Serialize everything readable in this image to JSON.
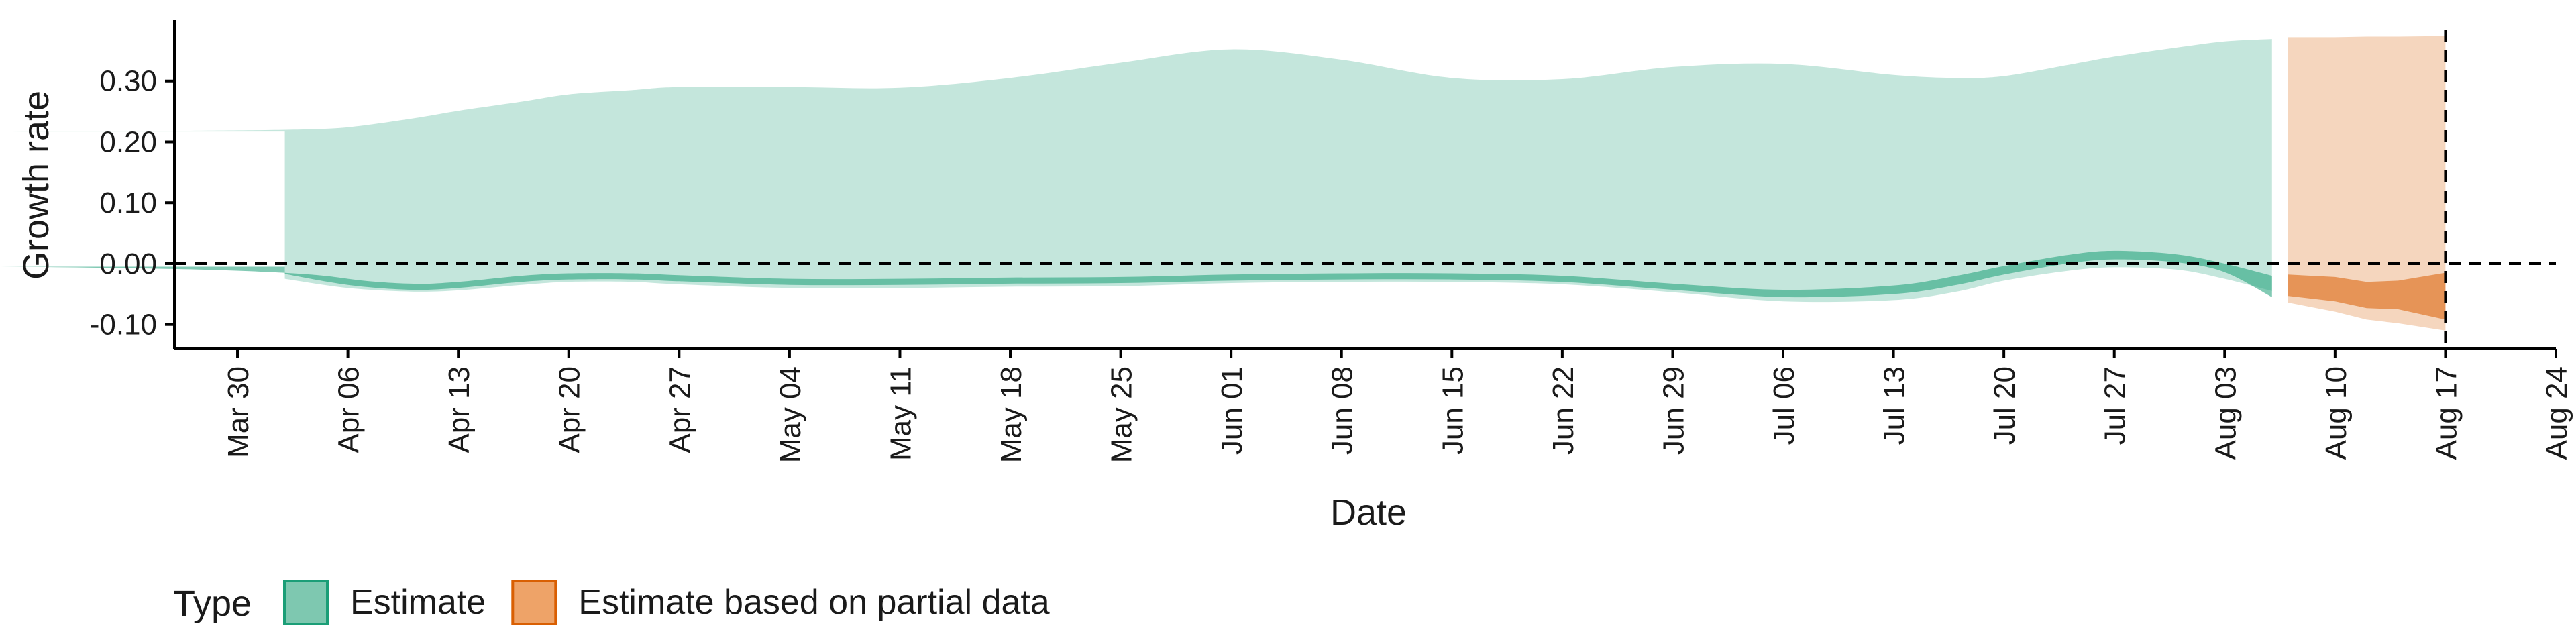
{
  "chart_data": {
    "type": "area",
    "xlabel": "Date",
    "ylabel": "Growth rate",
    "x_domain": [
      "2020-03-26",
      "2020-08-24"
    ],
    "ylim": [
      -0.14,
      0.4
    ],
    "y_ticks": [
      -0.1,
      0.0,
      0.1,
      0.2,
      0.3
    ],
    "y_tick_labels": [
      "-0.10",
      "0.00",
      "0.10",
      "0.20",
      "0.30"
    ],
    "x_ticks": [
      "2020-03-30",
      "2020-04-06",
      "2020-04-13",
      "2020-04-20",
      "2020-04-27",
      "2020-05-04",
      "2020-05-11",
      "2020-05-18",
      "2020-05-25",
      "2020-06-01",
      "2020-06-08",
      "2020-06-15",
      "2020-06-22",
      "2020-06-29",
      "2020-07-06",
      "2020-07-13",
      "2020-07-20",
      "2020-07-27",
      "2020-08-03",
      "2020-08-10",
      "2020-08-17",
      "2020-08-24"
    ],
    "x_tick_labels": [
      "Mar 30",
      "Apr 06",
      "Apr 13",
      "Apr 20",
      "Apr 27",
      "May 04",
      "May 11",
      "May 18",
      "May 25",
      "Jun 01",
      "Jun 08",
      "Jun 15",
      "Jun 22",
      "Jun 29",
      "Jul 06",
      "Jul 13",
      "Jul 20",
      "Jul 27",
      "Aug 03",
      "Aug 10",
      "Aug 17",
      "Aug 24"
    ],
    "reference_lines": {
      "y": 0.0,
      "x": "2020-08-17"
    },
    "grid": false,
    "legend": {
      "title": "Type",
      "position": "bottom-left",
      "items": [
        {
          "label": "Estimate",
          "fill": "#7ec8b0",
          "stroke": "#1b9e77"
        },
        {
          "label": "Estimate based on partial data",
          "fill": "#eea368",
          "stroke": "#d95f02"
        }
      ]
    },
    "series": [
      {
        "name": "Estimate",
        "color": "#1b9e77",
        "x": [
          "2020-04-02",
          "2020-04-06",
          "2020-04-10",
          "2020-04-13",
          "2020-04-17",
          "2020-04-20",
          "2020-04-24",
          "2020-04-27",
          "2020-05-04",
          "2020-05-11",
          "2020-05-18",
          "2020-05-25",
          "2020-06-01",
          "2020-06-08",
          "2020-06-15",
          "2020-06-22",
          "2020-06-29",
          "2020-07-06",
          "2020-07-13",
          "2020-07-17",
          "2020-07-20",
          "2020-07-24",
          "2020-07-27",
          "2020-07-31",
          "2020-08-03",
          "2020-08-06"
        ],
        "outer_lower": [
          -0.025,
          -0.04,
          -0.046,
          -0.044,
          -0.035,
          -0.03,
          -0.03,
          -0.034,
          -0.04,
          -0.04,
          -0.038,
          -0.037,
          -0.032,
          -0.03,
          -0.03,
          -0.034,
          -0.047,
          -0.062,
          -0.06,
          -0.046,
          -0.028,
          -0.012,
          -0.006,
          -0.01,
          -0.025,
          -0.045
        ],
        "inner_lower": [
          -0.017,
          -0.035,
          -0.043,
          -0.04,
          -0.03,
          -0.026,
          -0.026,
          -0.029,
          -0.035,
          -0.035,
          -0.033,
          -0.032,
          -0.028,
          -0.026,
          -0.026,
          -0.03,
          -0.043,
          -0.055,
          -0.05,
          -0.035,
          -0.018,
          0.0,
          0.007,
          0.002,
          -0.014,
          -0.055
        ],
        "inner_upper": [
          -0.005,
          -0.025,
          -0.033,
          -0.03,
          -0.02,
          -0.016,
          -0.016,
          -0.019,
          -0.025,
          -0.025,
          -0.023,
          -0.022,
          -0.018,
          -0.016,
          -0.016,
          -0.02,
          -0.033,
          -0.043,
          -0.036,
          -0.02,
          -0.004,
          0.014,
          0.021,
          0.015,
          0.0,
          -0.02
        ],
        "outer_upper": [
          0.217,
          0.224,
          0.238,
          0.251,
          0.266,
          0.278,
          0.285,
          0.29,
          0.29,
          0.289,
          0.305,
          0.33,
          0.352,
          0.335,
          0.305,
          0.303,
          0.323,
          0.328,
          0.31,
          0.305,
          0.308,
          0.326,
          0.34,
          0.355,
          0.365,
          0.369
        ]
      },
      {
        "name": "Estimate based on partial data",
        "color": "#d95f02",
        "x": [
          "2020-08-07",
          "2020-08-10",
          "2020-08-12",
          "2020-08-14",
          "2020-08-17"
        ],
        "outer_lower": [
          -0.064,
          -0.079,
          -0.092,
          -0.098,
          -0.11
        ],
        "inner_lower": [
          -0.053,
          -0.062,
          -0.073,
          -0.075,
          -0.092
        ],
        "inner_upper": [
          -0.018,
          -0.022,
          -0.03,
          -0.028,
          -0.015
        ],
        "outer_upper": [
          0.372,
          0.372,
          0.373,
          0.373,
          0.374
        ]
      }
    ]
  }
}
